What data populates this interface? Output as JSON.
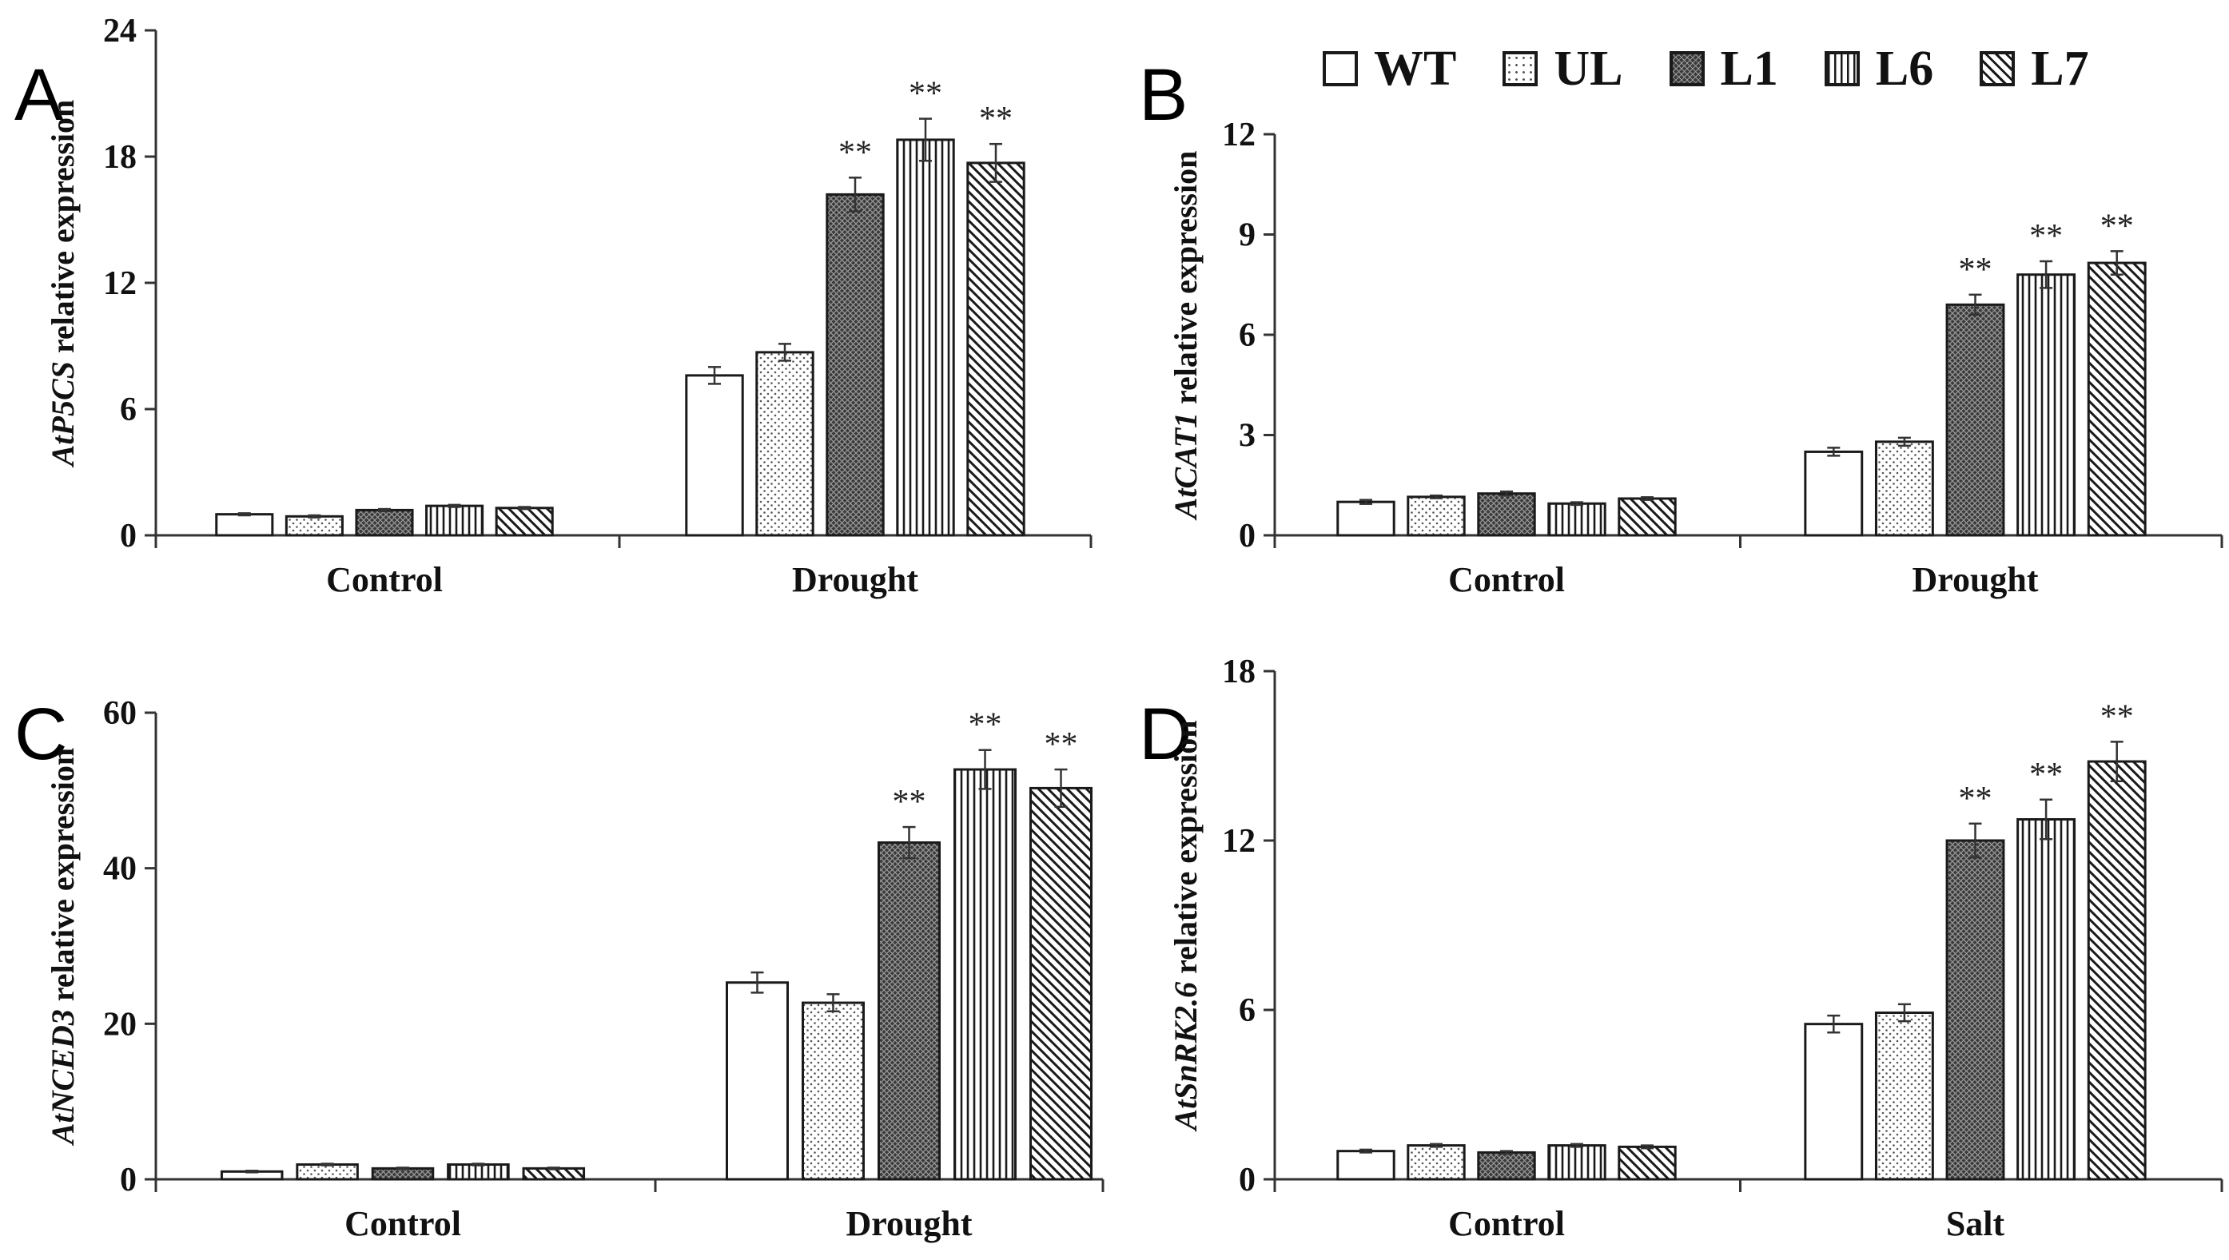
{
  "legend": [
    {
      "key": "WT",
      "label": "WT",
      "pattern": "white"
    },
    {
      "key": "UL",
      "label": "UL",
      "pattern": "dots"
    },
    {
      "key": "L1",
      "label": "L1",
      "pattern": "crosshatch"
    },
    {
      "key": "L6",
      "label": "L6",
      "pattern": "vlines"
    },
    {
      "key": "L7",
      "label": "L7",
      "pattern": "diag"
    }
  ],
  "colors": {
    "stroke": "#1a1a1a",
    "dark_fill": "#3a3a3a",
    "background": "#ffffff"
  },
  "chart_data": [
    {
      "type": "bar",
      "panel_letter": "A",
      "ylabel_italic": "AtP5CS",
      "ylabel_rest": " relative expression",
      "ylim": [
        0,
        24
      ],
      "yticks": [
        "0",
        "6",
        "12",
        "18",
        "24"
      ],
      "categories": [
        "Control",
        "Drought"
      ],
      "series": [
        {
          "name": "WT",
          "values": [
            1.0,
            7.6
          ],
          "errors": [
            0.05,
            0.4
          ]
        },
        {
          "name": "UL",
          "values": [
            0.9,
            8.7
          ],
          "errors": [
            0.05,
            0.4
          ]
        },
        {
          "name": "L1",
          "values": [
            1.2,
            16.2
          ],
          "errors": [
            0.05,
            0.8
          ]
        },
        {
          "name": "L6",
          "values": [
            1.4,
            18.8
          ],
          "errors": [
            0.05,
            1.0
          ]
        },
        {
          "name": "L7",
          "values": [
            1.3,
            17.7
          ],
          "errors": [
            0.05,
            0.9
          ]
        }
      ],
      "significance": [
        [
          "",
          ""
        ],
        [
          "",
          ""
        ],
        [
          "",
          "**"
        ],
        [
          "",
          "**"
        ],
        [
          "",
          "**"
        ]
      ]
    },
    {
      "type": "bar",
      "panel_letter": "B",
      "ylabel_italic": "AtCAT1",
      "ylabel_rest": " relative expression",
      "ylim": [
        0,
        12
      ],
      "yticks": [
        "0",
        "3",
        "6",
        "9",
        "12"
      ],
      "categories": [
        "Control",
        "Drought"
      ],
      "series": [
        {
          "name": "WT",
          "values": [
            1.0,
            2.5
          ],
          "errors": [
            0.06,
            0.12
          ]
        },
        {
          "name": "UL",
          "values": [
            1.15,
            2.8
          ],
          "errors": [
            0.04,
            0.12
          ]
        },
        {
          "name": "L1",
          "values": [
            1.25,
            6.9
          ],
          "errors": [
            0.06,
            0.3
          ]
        },
        {
          "name": "L6",
          "values": [
            0.95,
            7.8
          ],
          "errors": [
            0.04,
            0.4
          ]
        },
        {
          "name": "L7",
          "values": [
            1.1,
            8.15
          ],
          "errors": [
            0.04,
            0.35
          ]
        }
      ],
      "significance": [
        [
          "",
          ""
        ],
        [
          "",
          ""
        ],
        [
          "",
          "**"
        ],
        [
          "",
          "**"
        ],
        [
          "",
          "**"
        ]
      ]
    },
    {
      "type": "bar",
      "panel_letter": "C",
      "ylabel_italic": "AtNCED3",
      "ylabel_rest": " relative expression",
      "ylim": [
        0,
        60
      ],
      "yticks": [
        "0",
        "20",
        "40",
        "60"
      ],
      "categories": [
        "Control",
        "Drought"
      ],
      "series": [
        {
          "name": "WT",
          "values": [
            1.0,
            25.3
          ],
          "errors": [
            0.1,
            1.3
          ]
        },
        {
          "name": "UL",
          "values": [
            1.9,
            22.7
          ],
          "errors": [
            0.1,
            1.1
          ]
        },
        {
          "name": "L1",
          "values": [
            1.4,
            43.3
          ],
          "errors": [
            0.1,
            2.0
          ]
        },
        {
          "name": "L6",
          "values": [
            1.9,
            52.7
          ],
          "errors": [
            0.1,
            2.5
          ]
        },
        {
          "name": "L7",
          "values": [
            1.4,
            50.3
          ],
          "errors": [
            0.1,
            2.4
          ]
        }
      ],
      "significance": [
        [
          "",
          ""
        ],
        [
          "",
          ""
        ],
        [
          "",
          "**"
        ],
        [
          "",
          "**"
        ],
        [
          "",
          "**"
        ]
      ]
    },
    {
      "type": "bar",
      "panel_letter": "D",
      "ylabel_italic": "AtSnRK2.6",
      "ylabel_rest": " relative expression",
      "ylim": [
        0,
        18
      ],
      "yticks": [
        "0",
        "6",
        "12",
        "18"
      ],
      "categories": [
        "Control",
        "Salt"
      ],
      "series": [
        {
          "name": "WT",
          "values": [
            1.0,
            5.5
          ],
          "errors": [
            0.05,
            0.3
          ]
        },
        {
          "name": "UL",
          "values": [
            1.2,
            5.9
          ],
          "errors": [
            0.05,
            0.3
          ]
        },
        {
          "name": "L1",
          "values": [
            0.95,
            12.0
          ],
          "errors": [
            0.05,
            0.6
          ]
        },
        {
          "name": "L6",
          "values": [
            1.2,
            12.75
          ],
          "errors": [
            0.05,
            0.7
          ]
        },
        {
          "name": "L7",
          "values": [
            1.15,
            14.8
          ],
          "errors": [
            0.05,
            0.7
          ]
        }
      ],
      "significance": [
        [
          "",
          ""
        ],
        [
          "",
          ""
        ],
        [
          "",
          "**"
        ],
        [
          "",
          "**"
        ],
        [
          "",
          "**"
        ]
      ]
    }
  ]
}
